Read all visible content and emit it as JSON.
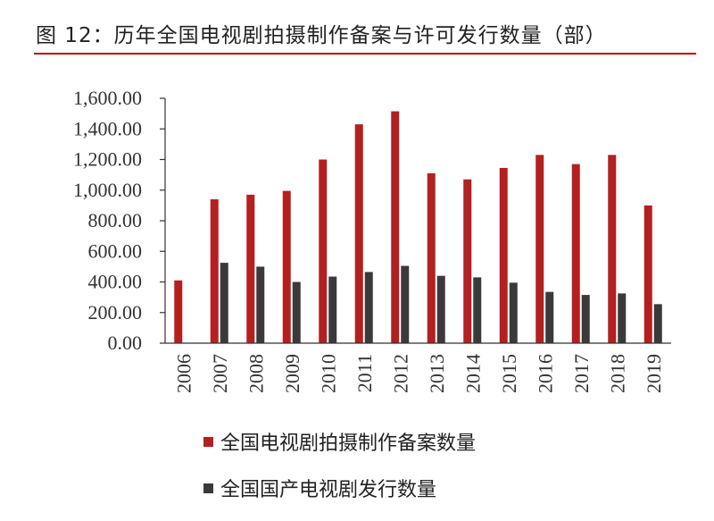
{
  "title": "图 12：历年全国电视剧拍摄制作备案与许可发行数量（部）",
  "colors": {
    "accent": "#c00000",
    "series1": "#b41f1f",
    "series2": "#3a3a3a"
  },
  "chart_data": {
    "type": "bar",
    "categories": [
      "2006",
      "2007",
      "2008",
      "2009",
      "2010",
      "2011",
      "2012",
      "2013",
      "2014",
      "2015",
      "2016",
      "2017",
      "2018",
      "2019"
    ],
    "series": [
      {
        "name": "全国电视剧拍摄制作备案数量",
        "values": [
          410,
          940,
          970,
          995,
          1200,
          1430,
          1515,
          1110,
          1070,
          1145,
          1230,
          1170,
          1230,
          900
        ]
      },
      {
        "name": "全国国产电视剧发行数量",
        "values": [
          null,
          525,
          500,
          400,
          435,
          465,
          505,
          440,
          430,
          395,
          335,
          315,
          325,
          255
        ]
      }
    ],
    "y_ticks": [
      "0.00",
      "200.00",
      "400.00",
      "600.00",
      "800.00",
      "1,000.00",
      "1,200.00",
      "1,400.00",
      "1,600.00"
    ],
    "ylim": [
      0,
      1600
    ],
    "legend_position": "bottom",
    "grid": false
  }
}
